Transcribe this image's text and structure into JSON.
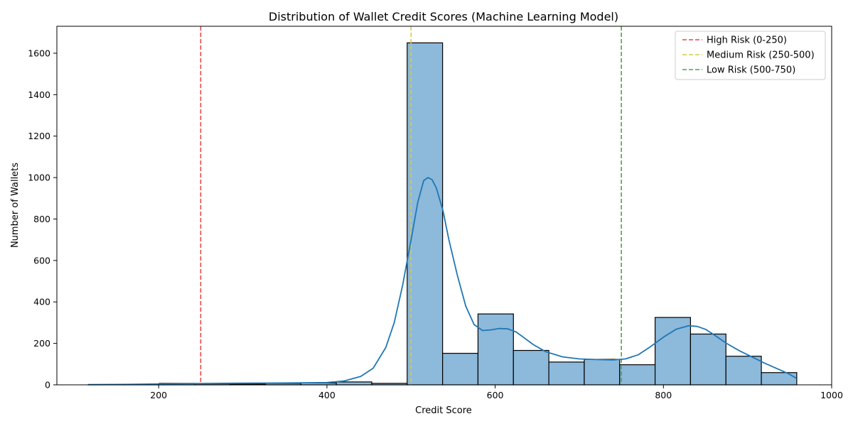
{
  "chart_data": {
    "type": "histogram",
    "title": "Distribution of Wallet Credit Scores (Machine Learning Model)",
    "xlabel": "Credit Score",
    "ylabel": "Number of Wallets",
    "xlim": [
      79,
      1000
    ],
    "ylim": [
      0,
      1730
    ],
    "xticks": [
      200,
      400,
      600,
      800,
      1000
    ],
    "yticks": [
      0,
      200,
      400,
      600,
      800,
      1000,
      1200,
      1400,
      1600
    ],
    "bar_color": "#8db9da",
    "kde_color": "#1f77b4",
    "bins": [
      {
        "x0": 116.5,
        "x1": 158.6,
        "count": 1
      },
      {
        "x0": 158.6,
        "x1": 200.7,
        "count": 2
      },
      {
        "x0": 200.7,
        "x1": 242.8,
        "count": 7
      },
      {
        "x0": 242.8,
        "x1": 284.9,
        "count": 5
      },
      {
        "x0": 284.9,
        "x1": 327.0,
        "count": 4
      },
      {
        "x0": 327.0,
        "x1": 369.1,
        "count": 7
      },
      {
        "x0": 369.1,
        "x1": 411.2,
        "count": 9
      },
      {
        "x0": 411.2,
        "x1": 453.3,
        "count": 14
      },
      {
        "x0": 453.3,
        "x1": 495.4,
        "count": 7
      },
      {
        "x0": 495.4,
        "x1": 537.5,
        "count": 1650
      },
      {
        "x0": 537.5,
        "x1": 579.6,
        "count": 152
      },
      {
        "x0": 579.6,
        "x1": 621.7,
        "count": 342
      },
      {
        "x0": 621.7,
        "x1": 663.8,
        "count": 166
      },
      {
        "x0": 663.8,
        "x1": 705.9,
        "count": 110
      },
      {
        "x0": 705.9,
        "x1": 748.0,
        "count": 123
      },
      {
        "x0": 748.0,
        "x1": 790.1,
        "count": 97
      },
      {
        "x0": 790.1,
        "x1": 832.2,
        "count": 325
      },
      {
        "x0": 832.2,
        "x1": 874.3,
        "count": 245
      },
      {
        "x0": 874.3,
        "x1": 916.4,
        "count": 138
      },
      {
        "x0": 916.4,
        "x1": 958.5,
        "count": 59
      }
    ],
    "kde": [
      [
        116,
        1
      ],
      [
        160,
        2
      ],
      [
        200,
        4
      ],
      [
        250,
        6
      ],
      [
        300,
        8
      ],
      [
        350,
        9
      ],
      [
        400,
        11
      ],
      [
        420,
        18
      ],
      [
        440,
        40
      ],
      [
        455,
        80
      ],
      [
        470,
        180
      ],
      [
        480,
        300
      ],
      [
        490,
        480
      ],
      [
        500,
        700
      ],
      [
        508,
        880
      ],
      [
        515,
        985
      ],
      [
        520,
        1000
      ],
      [
        525,
        990
      ],
      [
        530,
        950
      ],
      [
        538,
        840
      ],
      [
        545,
        700
      ],
      [
        555,
        530
      ],
      [
        565,
        380
      ],
      [
        575,
        290
      ],
      [
        585,
        262
      ],
      [
        595,
        265
      ],
      [
        605,
        272
      ],
      [
        615,
        270
      ],
      [
        625,
        255
      ],
      [
        635,
        225
      ],
      [
        645,
        195
      ],
      [
        660,
        160
      ],
      [
        680,
        135
      ],
      [
        700,
        125
      ],
      [
        720,
        122
      ],
      [
        740,
        120
      ],
      [
        755,
        125
      ],
      [
        770,
        145
      ],
      [
        785,
        185
      ],
      [
        800,
        230
      ],
      [
        815,
        268
      ],
      [
        830,
        285
      ],
      [
        840,
        282
      ],
      [
        850,
        268
      ],
      [
        860,
        242
      ],
      [
        875,
        200
      ],
      [
        890,
        165
      ],
      [
        905,
        135
      ],
      [
        920,
        105
      ],
      [
        935,
        78
      ],
      [
        948,
        55
      ],
      [
        958,
        32
      ]
    ],
    "thresholds": [
      {
        "name": "High Risk (0-250)",
        "value": 250,
        "color": "#e84646"
      },
      {
        "name": "Medium Risk (250-500)",
        "value": 500,
        "color": "#d4cc48"
      },
      {
        "name": "Low Risk (500-750)",
        "value": 750,
        "color": "#4aa64a"
      }
    ],
    "legend_position": "top-right"
  }
}
